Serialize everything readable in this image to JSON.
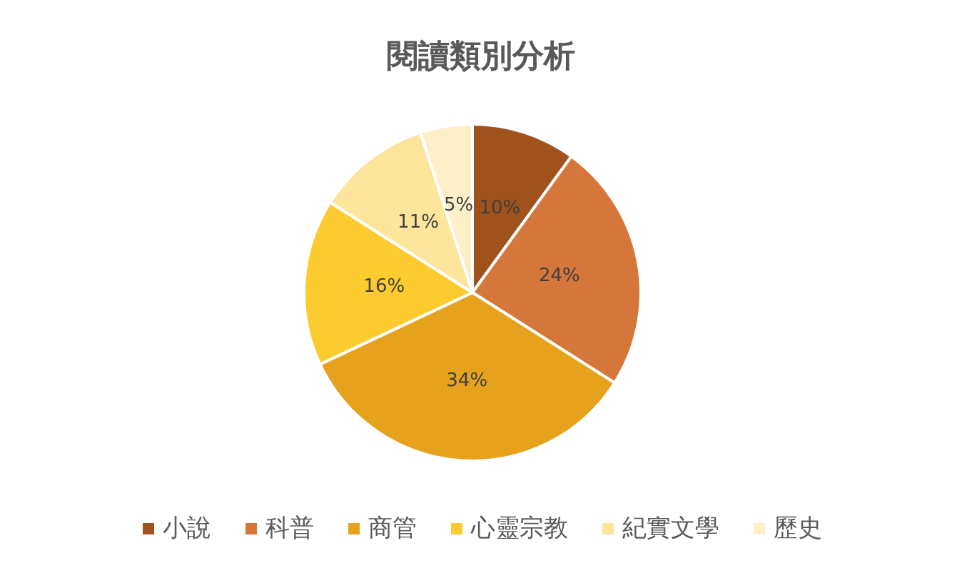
{
  "chart_data": {
    "type": "pie",
    "title": "閱讀類別分析",
    "categories": [
      "小說",
      "科普",
      "商管",
      "心靈宗教",
      "紀實文學",
      "歷史"
    ],
    "values": [
      10,
      24,
      34,
      16,
      11,
      5
    ],
    "colors": [
      "#a0521c",
      "#d5773a",
      "#e6a21d",
      "#fccb2f",
      "#fde59c",
      "#fdf0c9"
    ],
    "value_labels": [
      "10%",
      "24%",
      "34%",
      "16%",
      "11%",
      "5%"
    ],
    "legend": "bottom"
  }
}
